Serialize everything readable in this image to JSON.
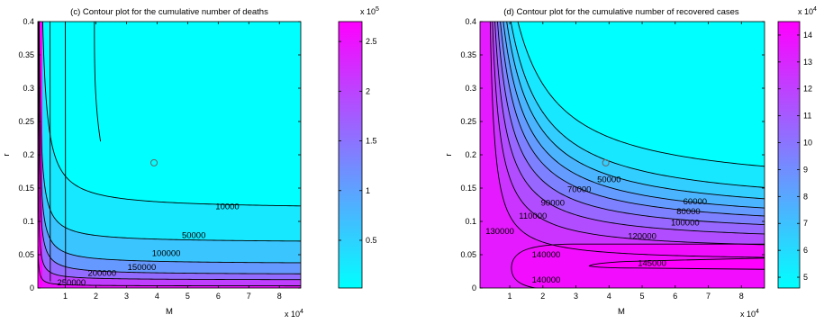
{
  "chart_data": [
    {
      "type": "contour",
      "title": "(c) Contour plot for the cumulative number of deaths",
      "xlabel": "M",
      "ylabel": "r",
      "x_multiplier": "x 10",
      "x_multiplier_exp": "4",
      "xlim": [
        0.1,
        8.7
      ],
      "ylim": [
        0,
        0.4
      ],
      "xticks": [
        1,
        2,
        3,
        4,
        5,
        6,
        7,
        8
      ],
      "yticks": [
        0,
        0.05,
        0.1,
        0.15,
        0.2,
        0.25,
        0.3,
        0.35,
        0.4
      ],
      "xtick_labels": [
        "1",
        "2",
        "3",
        "4",
        "5",
        "6",
        "7",
        "8"
      ],
      "ytick_labels": [
        "0",
        "0.05",
        "0.1",
        "0.15",
        "0.2",
        "0.25",
        "0.3",
        "0.35",
        "0.4"
      ],
      "marker": {
        "x": 3.9,
        "y": 0.188
      },
      "colorbar": {
        "multiplier": "x 10",
        "multiplier_exp": "5",
        "range": [
          0.02,
          2.7
        ],
        "ticks": [
          0.5,
          1,
          1.5,
          2,
          2.5
        ],
        "tick_labels": [
          "0.5",
          "1",
          "1.5",
          "2",
          "2.5"
        ],
        "low_color": "#00ffff",
        "high_color": "#ff00ff"
      },
      "contours": [
        {
          "level": 10000,
          "label": "10000",
          "label_at": [
            6.3,
            0.122
          ],
          "k": 0.45,
          "c": 0.118,
          "xa": 0.1
        },
        {
          "level": 50000,
          "label": "50000",
          "label_at": [
            5.2,
            0.079
          ],
          "k": 0.21,
          "c": 0.068,
          "xa": 0.08
        },
        {
          "level": 100000,
          "label": "100000",
          "label_at": [
            4.3,
            0.052
          ],
          "k": 0.16,
          "c": 0.036,
          "xa": 0.08
        },
        {
          "level": 150000,
          "label": "150000",
          "label_at": [
            3.5,
            0.031
          ],
          "k": 0.11,
          "c": 0.02,
          "xa": 0.08
        },
        {
          "level": 200000,
          "label": "200000",
          "label_at": [
            2.2,
            0.022
          ],
          "k": 0.05,
          "c": 0.012,
          "xa": 0.08
        },
        {
          "level": 250000,
          "label": "250000",
          "label_at": [
            1.2,
            0.008
          ],
          "k": 0.018,
          "c": 0.003,
          "xa": 0.07
        }
      ],
      "extra_vertical_contours": [
        {
          "x_top": 1.0,
          "k": 1.0
        },
        {
          "x_top": 0.5,
          "k": 1.0
        }
      ]
    },
    {
      "type": "contour",
      "title": "(d) Contour plot for the cumulative number of recovered cases",
      "xlabel": "M",
      "ylabel": "r",
      "x_multiplier": "x 10",
      "x_multiplier_exp": "4",
      "xlim": [
        0.1,
        8.7
      ],
      "ylim": [
        0,
        0.4
      ],
      "xticks": [
        1,
        2,
        3,
        4,
        5,
        6,
        7,
        8
      ],
      "yticks": [
        0,
        0.05,
        0.1,
        0.15,
        0.2,
        0.25,
        0.3,
        0.35,
        0.4
      ],
      "xtick_labels": [
        "1",
        "2",
        "3",
        "4",
        "5",
        "6",
        "7",
        "8"
      ],
      "ytick_labels": [
        "0",
        "0.05",
        "0.1",
        "0.15",
        "0.2",
        "0.25",
        "0.3",
        "0.35",
        "0.4"
      ],
      "marker": {
        "x": 3.9,
        "y": 0.188
      },
      "colorbar": {
        "multiplier": "x 10",
        "multiplier_exp": "4",
        "range": [
          4.6,
          14.5
        ],
        "ticks": [
          5,
          6,
          7,
          8,
          9,
          10,
          11,
          12,
          13,
          14
        ],
        "tick_labels": [
          "5",
          "6",
          "7",
          "8",
          "9",
          "10",
          "11",
          "12",
          "13",
          "14"
        ],
        "low_color": "#00ffff",
        "high_color": "#ff00ff"
      },
      "contours": [
        {
          "level": 50000,
          "label": "50000",
          "label_at": [
            4.0,
            0.163
          ],
          "k": 0.18,
          "c": 0.145,
          "xa": 2.7
        },
        {
          "level": 60000,
          "label": "60000",
          "label_at": [
            6.6,
            0.13
          ],
          "k": 0.2,
          "c": 0.117,
          "xa": 2.3
        },
        {
          "level": 70000,
          "label": "70000",
          "label_at": [
            3.1,
            0.148
          ],
          "k": 0.19,
          "c": 0.104,
          "xa": 1.9
        },
        {
          "level": 80000,
          "label": "80000",
          "label_at": [
            6.4,
            0.115
          ],
          "k": 0.2,
          "c": 0.094,
          "xa": 1.6
        },
        {
          "level": 90000,
          "label": "90000",
          "label_at": [
            2.3,
            0.128
          ],
          "k": 0.19,
          "c": 0.086,
          "xa": 1.35
        },
        {
          "level": 100000,
          "label": "100000",
          "label_at": [
            6.3,
            0.098
          ],
          "k": 0.2,
          "c": 0.077,
          "xa": 1.1
        },
        {
          "level": 110000,
          "label": "110000",
          "label_at": [
            1.7,
            0.108
          ],
          "k": 0.19,
          "c": 0.067,
          "xa": 0.9
        },
        {
          "level": 120000,
          "label": "120000",
          "label_at": [
            5.0,
            0.078
          ],
          "k": 0.2,
          "c": 0.055,
          "xa": 0.6
        },
        {
          "level": 130000,
          "label": "130000",
          "label_at": [
            0.7,
            0.085
          ],
          "k": 0.18,
          "c": 0.04,
          "xa": 0.3
        }
      ],
      "contour_140000": {
        "level": 140000,
        "labels": [
          {
            "label": "140000",
            "label_at": [
              2.1,
              0.05
            ]
          },
          {
            "label": "140000",
            "label_at": [
              2.1,
              0.012
            ]
          }
        ]
      },
      "contour_145000": {
        "level": 145000,
        "label": "145000",
        "label_at": [
          5.3,
          0.037
        ]
      }
    }
  ]
}
